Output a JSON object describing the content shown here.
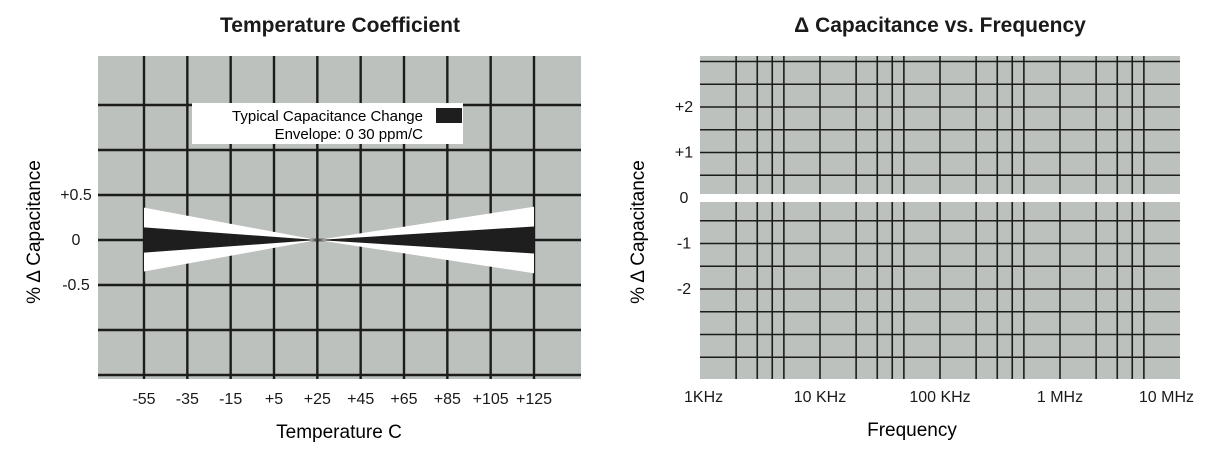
{
  "colors": {
    "plot_bg": "#bdc1bd",
    "grid": "#1c1c1c",
    "envelope": "#ffffff",
    "typical": "#1e1e1e",
    "text": "#1a1a1a"
  },
  "chart_data": [
    {
      "type": "area",
      "title": "Temperature Coefficient",
      "xlabel": "Temperature C",
      "ylabel": "% Δ Capacitance",
      "x_ticks": [
        "-55",
        "-35",
        "-15",
        "+5",
        "+25",
        "+45",
        "+65",
        "+85",
        "+105",
        "+125"
      ],
      "x_values": [
        -55,
        -35,
        -15,
        5,
        25,
        45,
        65,
        85,
        105,
        125
      ],
      "y_ticks": [
        "+0.5",
        "0",
        "-0.5"
      ],
      "y_tick_values": [
        0.5,
        0,
        -0.5
      ],
      "ylim": [
        -1.5,
        1.5
      ],
      "xlim": [
        -55,
        125
      ],
      "grid": true,
      "legend": {
        "placement": "top-center",
        "entries": [
          {
            "label": "Typical Capacitance Change",
            "swatch": "typical"
          },
          {
            "label": "Envelope: 0  30 ppm/C",
            "swatch": "envelope"
          }
        ]
      },
      "series": [
        {
          "name": "Envelope: 0  30 ppm/C",
          "x": [
            -55,
            25,
            125
          ],
          "upper": [
            0.36,
            0,
            0.37
          ],
          "lower": [
            -0.35,
            0,
            -0.37
          ]
        },
        {
          "name": "Typical Capacitance Change",
          "x": [
            -55,
            25,
            125
          ],
          "upper": [
            0.14,
            0,
            0.15
          ],
          "lower": [
            -0.14,
            0,
            -0.15
          ]
        }
      ]
    },
    {
      "type": "line",
      "title": "Δ Capacitance vs. Frequency",
      "xlabel": "Frequency",
      "ylabel": "% Δ Capacitance",
      "x_ticks": [
        "1KHz",
        "10 KHz",
        "100 KHz",
        "1 MHz",
        "10 MHz"
      ],
      "x_tick_values": [
        1000,
        10000,
        100000,
        1000000,
        10000000
      ],
      "x_scale": "log",
      "xlim": [
        1000,
        10000000
      ],
      "y_ticks": [
        "+2",
        "+1",
        "0",
        "-1",
        "-2"
      ],
      "y_tick_values": [
        2,
        1,
        0,
        -1,
        -2
      ],
      "ylim": [
        -4,
        3
      ],
      "grid": true,
      "series": [
        {
          "x": [
            1000,
            10000000
          ],
          "y": [
            0,
            0
          ]
        }
      ]
    }
  ]
}
